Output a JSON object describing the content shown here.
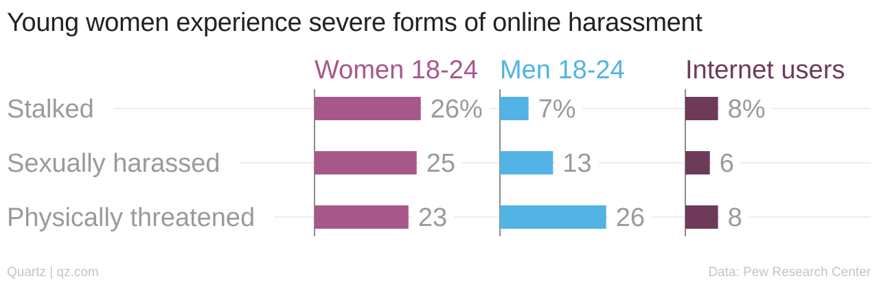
{
  "title": "Young women experience severe forms of online harassment",
  "source_left": "Quartz | qz.com",
  "source_right": "Data: Pew Research Center",
  "chart_data": {
    "type": "bar",
    "orientation": "horizontal",
    "title": "Young women experience severe forms of online harassment",
    "categories": [
      "Stalked",
      "Sexually harassed",
      "Physically threatened"
    ],
    "series": [
      {
        "name": "Women 18-24",
        "values": [
          26,
          25,
          23
        ],
        "value_labels": [
          "26%",
          "25",
          "23"
        ],
        "color": "#a8578a"
      },
      {
        "name": "Men 18-24",
        "values": [
          7,
          13,
          26
        ],
        "value_labels": [
          "7%",
          "13",
          "26"
        ],
        "color": "#52b3e4"
      },
      {
        "name": "Internet users",
        "values": [
          8,
          6,
          8
        ],
        "value_labels": [
          "8%",
          "6",
          "8"
        ],
        "color": "#6e3a5a"
      }
    ],
    "unit": "%",
    "grid": true,
    "legend": "column headers"
  }
}
